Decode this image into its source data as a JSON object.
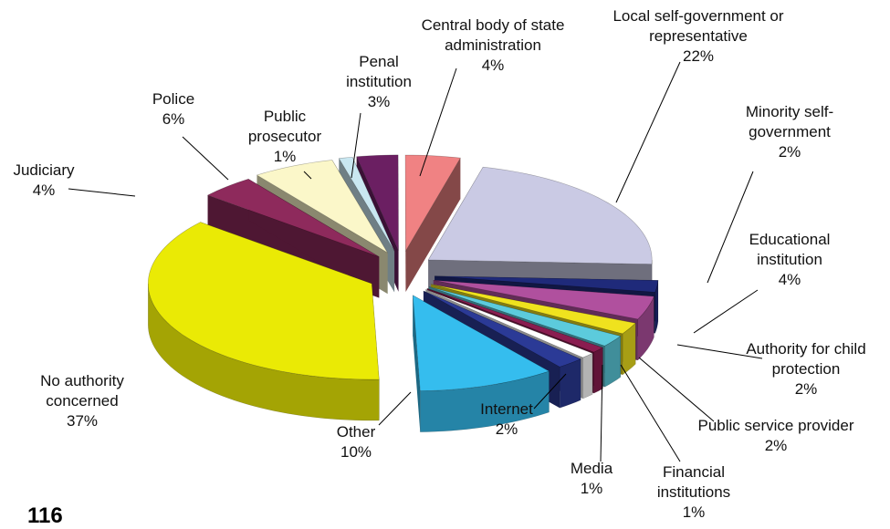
{
  "chart_data": {
    "type": "pie",
    "categories": [
      "Judiciary",
      "Police",
      "Public prosecutor",
      "Penal institution",
      "Central body of state administration",
      "Local self-government or representative",
      "Minority self-government",
      "Educational institution",
      "Authority for child protection",
      "Public service provider",
      "Financial institutions",
      "Media",
      "Internet",
      "Other",
      "No authority concerned"
    ],
    "values": [
      4,
      6,
      1,
      3,
      4,
      22,
      2,
      4,
      2,
      2,
      1,
      1,
      2,
      10,
      37
    ],
    "value_labels": [
      "4%",
      "6%",
      "1%",
      "3%",
      "4%",
      "22%",
      "2%",
      "4%",
      "2%",
      "2%",
      "1%",
      "1%",
      "2%",
      "10%",
      "37%"
    ],
    "colors": [
      "#8e2a5c",
      "#fbf7c9",
      "#c9e7f1",
      "#6b1f62",
      "#f08283",
      "#cacae4",
      "#1f2a7a",
      "#b0509e",
      "#efe21e",
      "#5ccbdc",
      "#8a1d50",
      "#ffffff",
      "#2b3a96",
      "#35bdee",
      "#eaea05"
    ]
  },
  "page_number": "116"
}
